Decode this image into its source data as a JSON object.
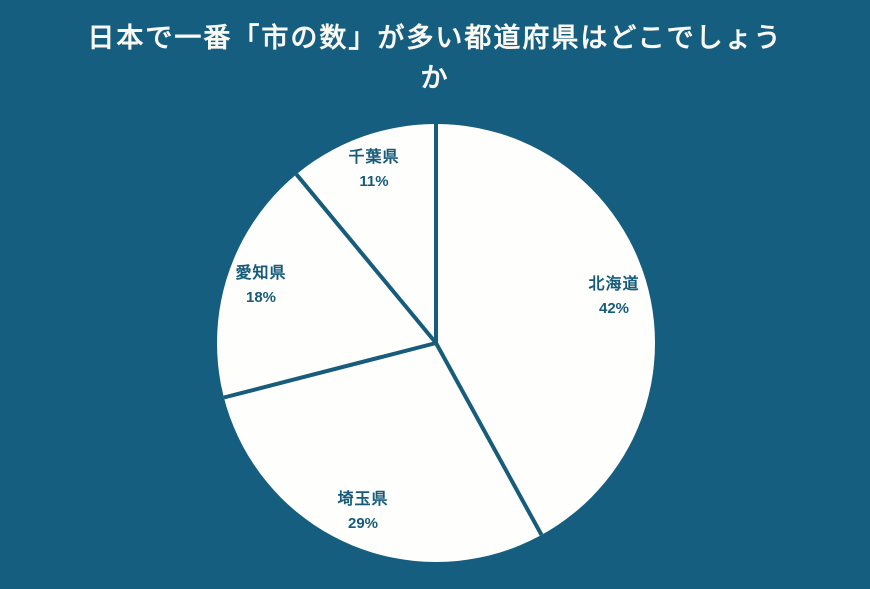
{
  "title": {
    "line1": "日本で一番「市の数」が多い都道府県はどこでしょう",
    "line2": "か",
    "full": "日本で一番「市の数」が多い都道府県はどこでしょうか"
  },
  "colors": {
    "background": "#155E80",
    "pie_fill": "#FEFEFC",
    "divider_line": "#175C7B",
    "label_text": "#175B7A",
    "title_text": "#F9F8F3"
  },
  "chart_data": {
    "type": "pie",
    "title": "日本で一番「市の数」が多い都道府県はどこでしょうか",
    "categories": [
      "北海道",
      "埼玉県",
      "愛知県",
      "千葉県"
    ],
    "values": [
      42,
      29,
      18,
      11
    ],
    "value_labels": [
      "42%",
      "29%",
      "18%",
      "11%"
    ],
    "unit": "percent",
    "start_angle": "12-o'clock",
    "direction": "clockwise",
    "legend_position": "none",
    "slice_style": "uniform white fill, teal divider lines, labels inside slices"
  }
}
